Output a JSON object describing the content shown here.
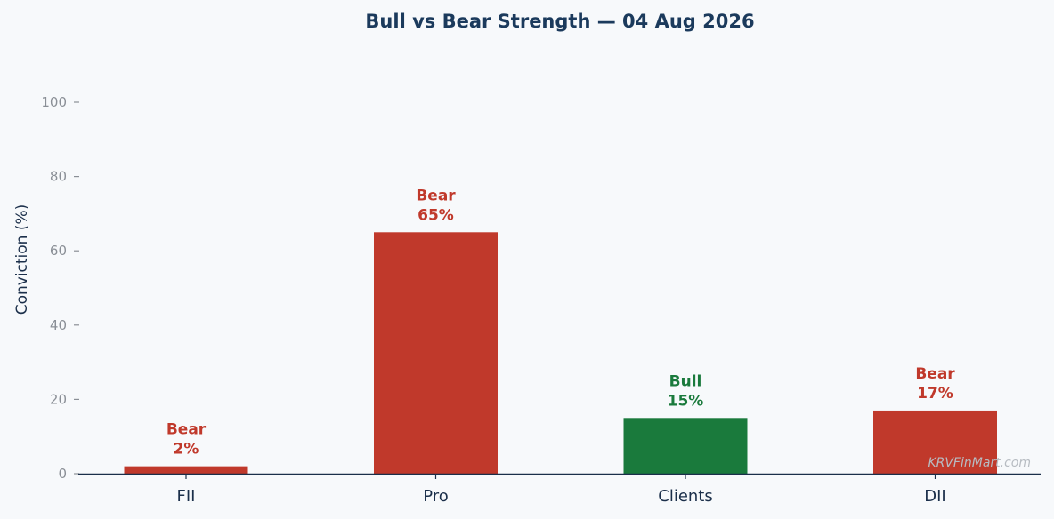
{
  "chart_data": {
    "type": "bar",
    "title": "Bull vs Bear Strength — 04 Aug 2026",
    "xlabel": "",
    "ylabel": "Conviction (%)",
    "ylim": [
      0,
      100
    ],
    "yticks": [
      0,
      20,
      40,
      60,
      80,
      100
    ],
    "grid": false,
    "categories": [
      "FII",
      "Pro",
      "Clients",
      "DII"
    ],
    "values": [
      2,
      65,
      15,
      17
    ],
    "sentiments": [
      "Bear",
      "Bear",
      "Bull",
      "Bear"
    ],
    "value_labels": [
      "2%",
      "65%",
      "15%",
      "17%"
    ],
    "colors": {
      "Bear": "#c0392b",
      "Bull": "#1a7a3c"
    },
    "watermark": "KRVFinMart.com"
  }
}
